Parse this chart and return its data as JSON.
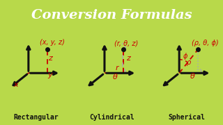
{
  "title": "Conversion Formulas",
  "title_bg": "#3d3d3d",
  "title_fg": "#ffffff",
  "bg_color": "#b8d94a",
  "panel_bg": "#ffffff",
  "red": "#cc0000",
  "black": "#111111",
  "gray": "#aaaaaa",
  "darkgray": "#555555",
  "labels_bottom": [
    "Rectangular",
    "Cylindrical",
    "Spherical"
  ],
  "coord_labels": [
    "(x, y, z)",
    "(r, θ, z)",
    "(ρ, θ, ϕ)"
  ]
}
